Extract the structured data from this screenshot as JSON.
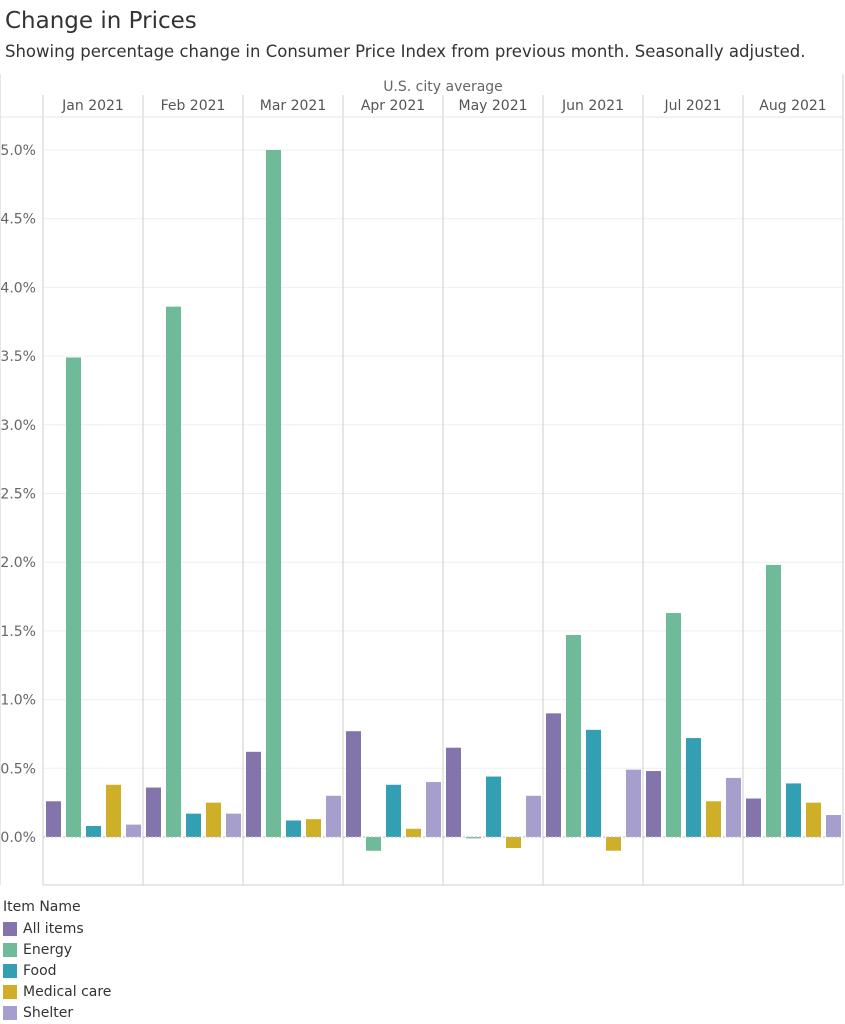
{
  "title": "Change in Prices",
  "subtitle": "Showing percentage change in Consumer Price Index from previous month. Seasonally adjusted.",
  "chart_data": {
    "type": "bar",
    "header": "U.S. city average",
    "categories": [
      "Jan 2021",
      "Feb 2021",
      "Mar 2021",
      "Apr 2021",
      "May 2021",
      "Jun 2021",
      "Jul 2021",
      "Aug 2021"
    ],
    "series": [
      {
        "name": "All items",
        "color": "#8474ac",
        "values": [
          0.26,
          0.36,
          0.62,
          0.77,
          0.65,
          0.9,
          0.48,
          0.28
        ]
      },
      {
        "name": "Energy",
        "color": "#6fba98",
        "values": [
          3.49,
          3.86,
          5.0,
          -0.1,
          -0.01,
          1.47,
          1.63,
          1.98
        ]
      },
      {
        "name": "Food",
        "color": "#32a0b2",
        "values": [
          0.08,
          0.17,
          0.12,
          0.38,
          0.44,
          0.78,
          0.72,
          0.39
        ]
      },
      {
        "name": "Medical care",
        "color": "#cfaf28",
        "values": [
          0.38,
          0.25,
          0.13,
          0.06,
          -0.08,
          -0.1,
          0.26,
          0.25
        ]
      },
      {
        "name": "Shelter",
        "color": "#a69ecd",
        "values": [
          0.09,
          0.17,
          0.3,
          0.4,
          0.3,
          0.49,
          0.43,
          0.16
        ]
      }
    ],
    "y_ticks": [
      "0.0%",
      "0.5%",
      "1.0%",
      "1.5%",
      "2.0%",
      "2.5%",
      "3.0%",
      "3.5%",
      "4.0%",
      "4.5%",
      "5.0%"
    ],
    "ylim": [
      -0.35,
      5.25
    ],
    "legend_title": "Item Name",
    "legend_position": "bottom-left"
  }
}
